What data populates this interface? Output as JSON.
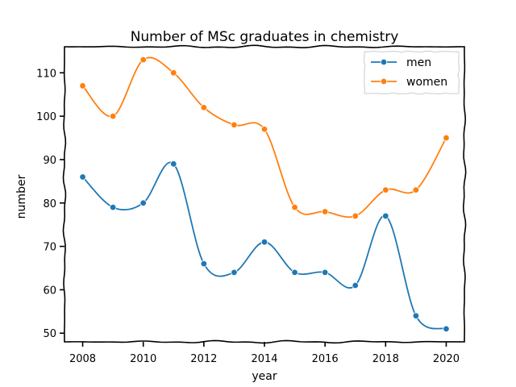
{
  "chart_data": {
    "type": "line",
    "title": "Number of MSc graduates in chemistry",
    "xlabel": "year",
    "ylabel": "number",
    "x": [
      2008,
      2009,
      2010,
      2011,
      2012,
      2013,
      2014,
      2015,
      2016,
      2017,
      2018,
      2019,
      2020
    ],
    "xlim": [
      2007.4,
      2020.6
    ],
    "ylim": [
      48,
      116
    ],
    "xticks": [
      2008,
      2010,
      2012,
      2014,
      2016,
      2018,
      2020
    ],
    "yticks": [
      50,
      60,
      70,
      80,
      90,
      100,
      110
    ],
    "grid": false,
    "legend_position": "top-right",
    "series": [
      {
        "name": "men",
        "color": "#1f77b4",
        "values": [
          86,
          79,
          80,
          89,
          66,
          64,
          71,
          64,
          64,
          61,
          77,
          54,
          51
        ]
      },
      {
        "name": "women",
        "color": "#ff7f0e",
        "values": [
          107,
          100,
          113,
          110,
          102,
          98,
          97,
          79,
          78,
          77,
          83,
          83,
          95
        ]
      }
    ]
  }
}
